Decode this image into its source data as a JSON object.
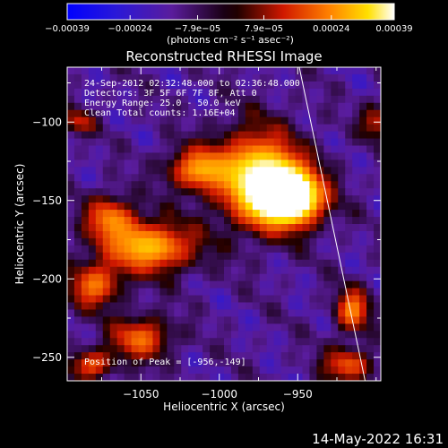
{
  "chart_data": {
    "type": "heatmap",
    "title": "Reconstructed RHESSI Image",
    "xlabel": "Heliocentric X (arcsec)",
    "ylabel": "Heliocentric Y (arcsec)",
    "xlim": [
      -1097,
      -897
    ],
    "ylim": [
      -265,
      -65
    ],
    "x_ticks": [
      {
        "value": -1050,
        "label": "−1050"
      },
      {
        "value": -1000,
        "label": "−1000"
      },
      {
        "value": -950,
        "label": "−950"
      }
    ],
    "y_ticks": [
      {
        "value": -100,
        "label": "−100"
      },
      {
        "value": -150,
        "label": "−150"
      },
      {
        "value": -200,
        "label": "−200"
      },
      {
        "value": -250,
        "label": "−250"
      }
    ],
    "colorbar": {
      "range": [
        -0.00039,
        0.00039
      ],
      "ticks": [
        {
          "value": -0.00039,
          "label": "−0.00039"
        },
        {
          "value": -0.00024,
          "label": "−0.00024"
        },
        {
          "value": -7.9e-05,
          "label": "−7.9e−05"
        },
        {
          "value": 7.9e-05,
          "label": "7.9e−05"
        },
        {
          "value": 0.00024,
          "label": "0.00024"
        },
        {
          "value": 0.00039,
          "label": "0.00039"
        }
      ],
      "unit_label": "(photons cm⁻² s⁻¹ asec⁻²)"
    },
    "annotations": [
      "24-Sep-2012 02:32:48.000 to 02:36:48.000",
      "Detectors: 3F 5F 6F 7F 8F, Att 0",
      "Energy Range: 25.0 - 50.0 keV",
      "Clean     Total counts: 1.16E+04"
    ],
    "peak_label": "Position of Peak = [-956,-149]",
    "peak": {
      "x": -956,
      "y": -149
    },
    "limb_line": [
      {
        "x": -949,
        "y": -65
      },
      {
        "x": -907,
        "y": -265
      }
    ],
    "sources": [
      {
        "x": -955,
        "y": -148,
        "sx": 16,
        "sy": 13,
        "amp": 1.0
      },
      {
        "x": -975,
        "y": -135,
        "sx": 20,
        "sy": 22,
        "amp": 0.78
      },
      {
        "x": -1015,
        "y": -130,
        "sx": 14,
        "sy": 10,
        "amp": 0.55
      },
      {
        "x": -1045,
        "y": -180,
        "sx": 22,
        "sy": 12,
        "amp": 0.7
      },
      {
        "x": -1070,
        "y": -160,
        "sx": 12,
        "sy": 10,
        "amp": 0.5
      },
      {
        "x": -1080,
        "y": -205,
        "sx": 12,
        "sy": 10,
        "amp": 0.55
      },
      {
        "x": -1050,
        "y": -238,
        "sx": 14,
        "sy": 10,
        "amp": 0.55
      },
      {
        "x": -1082,
        "y": -255,
        "sx": 10,
        "sy": 7,
        "amp": 0.5
      },
      {
        "x": -915,
        "y": -220,
        "sx": 8,
        "sy": 10,
        "amp": 0.6
      },
      {
        "x": -918,
        "y": -255,
        "sx": 12,
        "sy": 8,
        "amp": 0.5
      },
      {
        "x": -1090,
        "y": -100,
        "sx": 8,
        "sy": 6,
        "amp": 0.38
      },
      {
        "x": -900,
        "y": -100,
        "sx": 7,
        "sy": 8,
        "amp": 0.4
      }
    ],
    "grid": false
  },
  "footer": {
    "timestamp": "14-May-2022 16:31"
  }
}
